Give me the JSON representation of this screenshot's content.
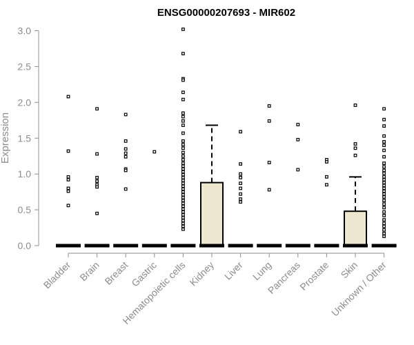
{
  "chart_data": {
    "type": "boxplot",
    "title": "ENSG00000207693 - MIR602",
    "xlabel": "",
    "ylabel": "Expression",
    "ylim": [
      0,
      3.0
    ],
    "yticks": [
      0.0,
      0.5,
      1.0,
      1.5,
      2.0,
      2.5,
      3.0
    ],
    "ytick_labels": [
      "0.0",
      "0.5",
      "1.0",
      "1.5",
      "2.0",
      "2.5",
      "3.0"
    ],
    "box_color": "#ede8cf",
    "categories": [
      "Bladder",
      "Brain",
      "Breast",
      "Gastric",
      "Hematopoietic cells",
      "Kidney",
      "Liver",
      "Lung",
      "Pancreas",
      "Prostate",
      "Skin",
      "Unknown / Other"
    ],
    "boxes": [
      {
        "category": "Bladder",
        "q1": 0,
        "median": 0,
        "q3": 0,
        "whisker_low": 0,
        "whisker_high": 0,
        "outliers": [
          2.08,
          1.32,
          0.96,
          0.92,
          0.8,
          0.76,
          0.56
        ]
      },
      {
        "category": "Brain",
        "q1": 0,
        "median": 0,
        "q3": 0,
        "whisker_low": 0,
        "whisker_high": 0,
        "outliers": [
          1.91,
          1.28,
          0.95,
          0.9,
          0.85,
          0.82,
          0.45
        ]
      },
      {
        "category": "Breast",
        "q1": 0,
        "median": 0,
        "q3": 0,
        "whisker_low": 0,
        "whisker_high": 0,
        "outliers": [
          1.83,
          1.46,
          1.35,
          1.29,
          1.24,
          1.07,
          1.05,
          0.79
        ]
      },
      {
        "category": "Gastric",
        "q1": 0,
        "median": 0,
        "q3": 0,
        "whisker_low": 0,
        "whisker_high": 0,
        "outliers": [
          1.31
        ]
      },
      {
        "category": "Hematopoietic cells",
        "q1": 0,
        "median": 0,
        "q3": 0,
        "whisker_low": 0,
        "whisker_high": 0,
        "outliers": [
          3.02,
          2.68,
          2.33,
          2.31,
          2.14,
          2.04,
          1.85,
          1.8,
          1.74,
          1.68,
          1.57,
          1.46,
          1.41,
          1.36,
          1.3,
          1.25,
          1.2,
          1.15,
          1.11,
          1.07,
          1.03,
          0.99,
          0.95,
          0.91,
          0.87,
          0.83,
          0.79,
          0.75,
          0.71,
          0.67,
          0.63,
          0.59,
          0.55,
          0.51,
          0.47,
          0.43,
          0.39,
          0.35,
          0.31,
          0.27,
          0.23
        ]
      },
      {
        "category": "Kidney",
        "q1": 0,
        "median": 0,
        "q3": 0.88,
        "whisker_low": 0,
        "whisker_high": 1.68,
        "outliers": []
      },
      {
        "category": "Liver",
        "q1": 0,
        "median": 0,
        "q3": 0,
        "whisker_low": 0,
        "whisker_high": 0,
        "outliers": [
          1.59,
          1.14,
          1.0,
          0.95,
          0.87,
          0.8,
          0.72,
          0.65,
          0.61
        ]
      },
      {
        "category": "Lung",
        "q1": 0,
        "median": 0,
        "q3": 0,
        "whisker_low": 0,
        "whisker_high": 0,
        "outliers": [
          1.95,
          1.74,
          1.16,
          0.78
        ]
      },
      {
        "category": "Pancreas",
        "q1": 0,
        "median": 0,
        "q3": 0,
        "whisker_low": 0,
        "whisker_high": 0,
        "outliers": [
          1.69,
          1.48,
          1.06
        ]
      },
      {
        "category": "Prostate",
        "q1": 0,
        "median": 0,
        "q3": 0,
        "whisker_low": 0,
        "whisker_high": 0,
        "outliers": [
          1.2,
          1.17,
          0.96,
          0.85
        ]
      },
      {
        "category": "Skin",
        "q1": 0,
        "median": 0,
        "q3": 0.48,
        "whisker_low": 0,
        "whisker_high": 0.96,
        "outliers": [
          1.96,
          1.42,
          1.36,
          1.26
        ]
      },
      {
        "category": "Unknown / Other",
        "q1": 0,
        "median": 0,
        "q3": 0,
        "whisker_low": 0,
        "whisker_high": 0,
        "outliers": [
          1.91,
          1.76,
          1.67,
          1.53,
          1.45,
          1.4,
          1.33,
          1.24,
          1.15,
          1.1,
          1.05,
          1.01,
          0.96,
          0.92,
          0.88,
          0.84,
          0.8,
          0.76,
          0.72,
          0.68,
          0.63,
          0.58,
          0.53,
          0.47,
          0.42,
          0.36,
          0.31,
          0.27,
          0.22,
          0.17,
          0.13
        ]
      }
    ]
  }
}
